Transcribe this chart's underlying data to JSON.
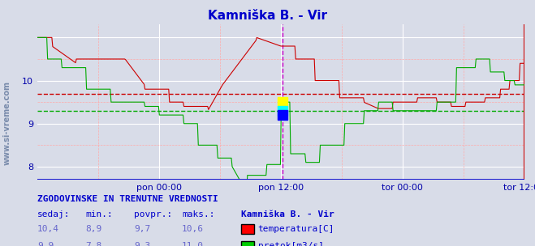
{
  "title": "Kamniška B. - Vir",
  "title_color": "#0000cc",
  "bg_color": "#d8dce8",
  "plot_bg_color": "#d8dce8",
  "grid_color_major": "#ffffff",
  "grid_color_minor": "#ffcccc",
  "x_labels": [
    "pon 00:00",
    "pon 12:00",
    "tor 00:00",
    "tor 12:00"
  ],
  "x_label_color": "#0000aa",
  "y_ticks": [
    8,
    9,
    10
  ],
  "y_color": "#0000aa",
  "ylim": [
    7.7,
    11.3
  ],
  "temp_color": "#cc0000",
  "flow_color": "#00aa00",
  "temp_avg": 9.7,
  "flow_avg": 9.3,
  "temp_dashed_color": "#cc0000",
  "flow_dashed_color": "#00aa00",
  "vline_color": "#cc00cc",
  "bottom_line_color": "#0000cc",
  "right_line_color": "#cc0000",
  "watermark": "www.si-vreme.com",
  "watermark_color": "#1a3a6e",
  "n_points": 576,
  "table_header": "ZGODOVINSKE IN TRENUTNE VREDNOSTI",
  "table_cols": [
    "sedaj:",
    "min.:",
    "povpr.:",
    "maks.:"
  ],
  "table_row1": [
    "10,4",
    "8,9",
    "9,7",
    "10,6"
  ],
  "table_row2": [
    "9,9",
    "7,8",
    "9,3",
    "11,0"
  ],
  "legend_title": "Kamniška B. - Vir",
  "legend_temp": "temperatura[C]",
  "legend_flow": "pretok[m3/s]"
}
